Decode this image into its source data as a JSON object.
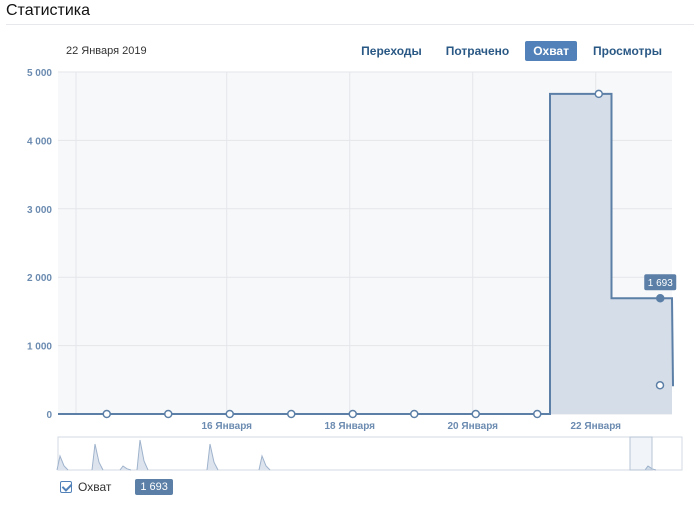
{
  "header": {
    "title": "Статистика"
  },
  "date_label": "22 Января 2019",
  "tabs": [
    {
      "label": "Переходы",
      "active": false
    },
    {
      "label": "Потрачено",
      "active": false
    },
    {
      "label": "Охват",
      "active": true
    },
    {
      "label": "Просмотры",
      "active": false
    }
  ],
  "legend": {
    "label": "Охват",
    "value": "1 693",
    "checked": true
  },
  "colors": {
    "accent": "#5181b8",
    "line": "#5b7fa6",
    "fill": "#d5dde8",
    "tooltip": "#5b7fa6"
  },
  "chart_data": {
    "type": "area",
    "step": true,
    "series": [
      {
        "name": "Охват",
        "values": [
          0,
          0,
          0,
          0,
          0,
          0,
          0,
          0,
          4680,
          1693,
          420
        ]
      }
    ],
    "x_ticks": [
      {
        "index": 2,
        "label": "16 Января"
      },
      {
        "index": 4,
        "label": "18 Января"
      },
      {
        "index": 6,
        "label": "20 Января"
      },
      {
        "index": 8,
        "label": "22 Января"
      }
    ],
    "y_ticks": [
      {
        "value": 0,
        "label": "0"
      },
      {
        "value": 1000,
        "label": "1 000"
      },
      {
        "value": 2000,
        "label": "2 000"
      },
      {
        "value": 3000,
        "label": "3 000"
      },
      {
        "value": 4000,
        "label": "4 000"
      },
      {
        "value": 5000,
        "label": "5 000"
      }
    ],
    "ylim": [
      0,
      5000
    ],
    "grid": true,
    "highlight": {
      "index": 9,
      "label": "1 693"
    }
  }
}
